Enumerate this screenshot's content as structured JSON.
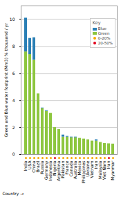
{
  "chart_data": {
    "type": "bar",
    "stacked": true,
    "categories": [
      "India",
      "USA",
      "China",
      "Brazil",
      "Russia",
      "Germany",
      "Indonesia",
      "Nigeria",
      "Argentina",
      "Pakistan",
      "France",
      "Canada",
      "Australia",
      "Mexico",
      "Philippines",
      "Ukraine",
      "Vietnam",
      "Iran",
      "Malaysia",
      "Viet Nam",
      "Iran",
      "Myanmar"
    ],
    "series": [
      {
        "name": "Green",
        "color": "#8dc63f",
        "values": [
          7.6,
          7.4,
          7.0,
          4.5,
          3.4,
          3.2,
          3.05,
          2.0,
          1.85,
          1.3,
          1.3,
          1.25,
          1.25,
          1.2,
          1.15,
          1.1,
          1.0,
          1.0,
          0.9,
          0.82,
          0.8,
          0.78
        ]
      },
      {
        "name": "Blue",
        "color": "#2a7fb5",
        "values": [
          2.5,
          1.2,
          1.65,
          0.0,
          0.05,
          0.05,
          0.0,
          0.0,
          0.0,
          0.15,
          0.05,
          0.05,
          0.05,
          0.0,
          0.0,
          0.0,
          0.0,
          0.1,
          0.0,
          0.0,
          0.0,
          0.0
        ]
      }
    ],
    "dot_classes": [
      "0-20%",
      "0-20%",
      "0-20%",
      "0-20%",
      "0-20%",
      "0-20%",
      "0-20%",
      "20-50%",
      "0-20%",
      "0-20%",
      "0-20%",
      "0-20%",
      "0-20%",
      "0-20%",
      "0-20%",
      "0-20%",
      "0-20%",
      "0-20%",
      "0-20%",
      "0-20%",
      "20-50%",
      "0-20%"
    ],
    "dot_colors": [
      {
        "name": "0-20%",
        "color": "#f7a800"
      },
      {
        "name": "20-50%",
        "color": "#e2001a"
      }
    ],
    "ylim": [
      0,
      11
    ],
    "yticks": [
      0,
      2,
      4,
      6,
      8,
      10
    ],
    "ylabel": "Green and Blue water footprint (Mm3) % thousand / yr",
    "xlabel": "Country",
    "grid": true,
    "legend": "upper right",
    "legend_title": "Key"
  }
}
